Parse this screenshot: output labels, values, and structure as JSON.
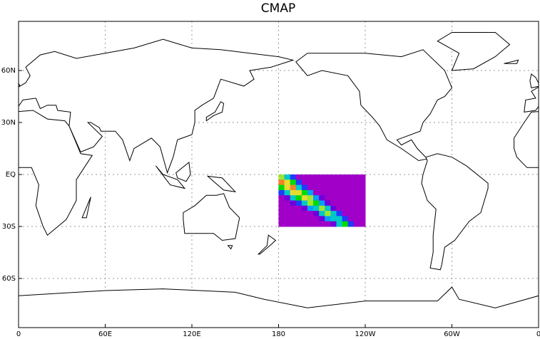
{
  "map": {
    "title": "CMAP",
    "lat_labels": [
      "60N",
      "30N",
      "EQ",
      "30S",
      "60S"
    ],
    "lon_labels": [
      "0",
      "60E",
      "120E",
      "180",
      "120W",
      "60W",
      "0"
    ]
  }
}
